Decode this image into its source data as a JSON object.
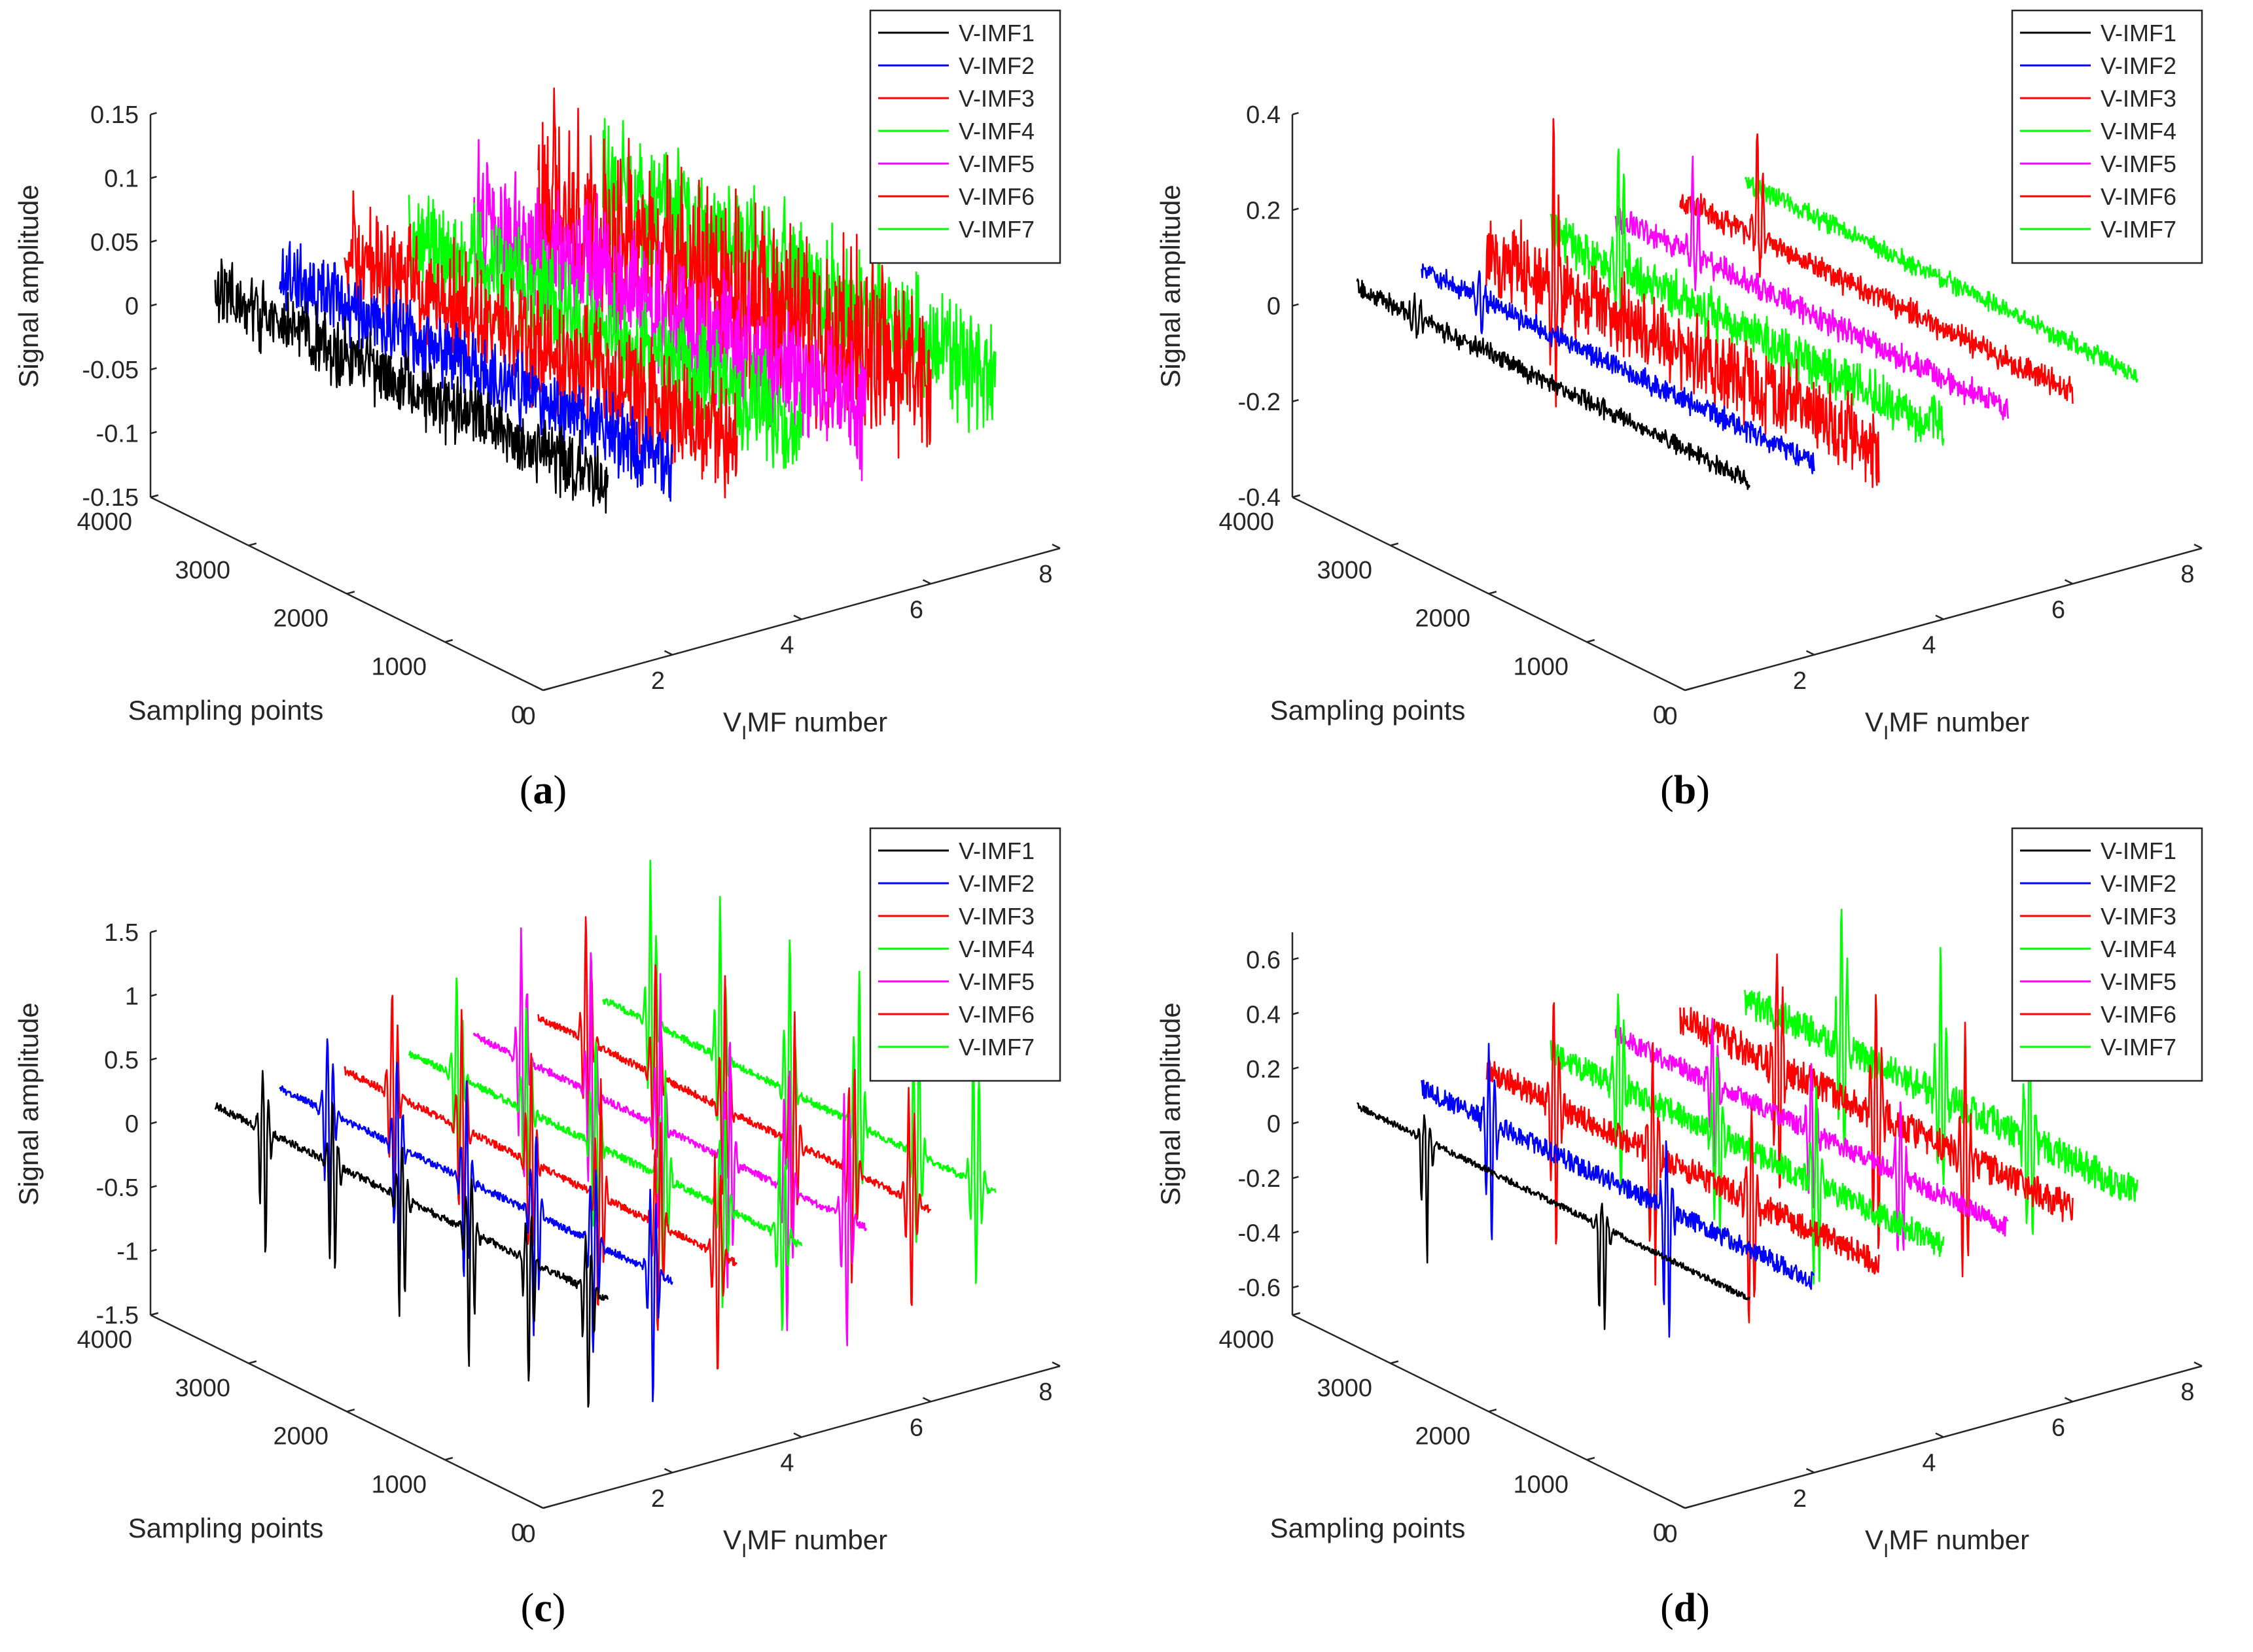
{
  "colors": {
    "V-IMF1": "#000000",
    "V-IMF2": "#0000ff",
    "V-IMF3": "#ff0000",
    "V-IMF4": "#00ff00",
    "V-IMF5": "#ff00ff",
    "V-IMF6": "#ff0000",
    "V-IMF7": "#00ff00",
    "axis": "#262626",
    "legend_border": "#262626"
  },
  "chart_data": [
    {
      "panel": "a",
      "caption": "(a)",
      "type": "line",
      "projection": "3d",
      "xlabel": "V_IMF number",
      "xlabel_parts": [
        "V",
        "I",
        "MF number"
      ],
      "ylabel": "Sampling points",
      "zlabel": "Signal amplitude",
      "xlim": [
        0,
        8
      ],
      "ylim": [
        0,
        4000
      ],
      "zlim": [
        -0.15,
        0.15
      ],
      "xticks": [
        "0",
        "2",
        "4",
        "6",
        "8"
      ],
      "yticks": [
        "0",
        "1000",
        "2000",
        "3000",
        "4000"
      ],
      "zticks": [
        "-0.15",
        "-0.1",
        "-0.05",
        "0",
        "0.05",
        "0.1",
        "0.15"
      ],
      "legend": [
        "V-IMF1",
        "V-IMF2",
        "V-IMF3",
        "V-IMF4",
        "V-IMF5",
        "V-IMF6",
        "V-IMF7"
      ],
      "legend_position": "top-right",
      "signal_style": "dense-noise",
      "series": [
        {
          "name": "V-IMF1",
          "x": 1,
          "sample_range": [
            0,
            4000
          ],
          "amplitude_range": [
            -0.035,
            0.03
          ],
          "peaks": []
        },
        {
          "name": "V-IMF2",
          "x": 2,
          "sample_range": [
            0,
            4000
          ],
          "amplitude_range": [
            -0.04,
            0.035
          ],
          "peaks": []
        },
        {
          "name": "V-IMF3",
          "x": 3,
          "sample_range": [
            0,
            4000
          ],
          "amplitude_range": [
            -0.05,
            0.06
          ],
          "peaks": []
        },
        {
          "name": "V-IMF4",
          "x": 4,
          "sample_range": [
            0,
            4000
          ],
          "amplitude_range": [
            -0.05,
            0.05
          ],
          "peaks": []
        },
        {
          "name": "V-IMF5",
          "x": 5,
          "sample_range": [
            0,
            4000
          ],
          "amplitude_range": [
            -0.07,
            0.07
          ],
          "peaks": []
        },
        {
          "name": "V-IMF6",
          "x": 6,
          "sample_range": [
            0,
            4000
          ],
          "amplitude_range": [
            -0.08,
            0.1
          ],
          "peaks": []
        },
        {
          "name": "V-IMF7",
          "x": 7,
          "sample_range": [
            0,
            4000
          ],
          "amplitude_range": [
            -0.06,
            0.06
          ],
          "peaks": []
        }
      ]
    },
    {
      "panel": "b",
      "caption": "(b)",
      "type": "line",
      "projection": "3d",
      "xlabel": "V_IMF number",
      "xlabel_parts": [
        "V",
        "I",
        "MF number"
      ],
      "ylabel": "Sampling points",
      "zlabel": "Signal amplitude",
      "xlim": [
        0,
        8
      ],
      "ylim": [
        0,
        4000
      ],
      "zlim": [
        -0.4,
        0.4
      ],
      "xticks": [
        "0",
        "2",
        "4",
        "6",
        "8"
      ],
      "yticks": [
        "0",
        "1000",
        "2000",
        "3000",
        "4000"
      ],
      "zticks": [
        "-0.4",
        "-0.2",
        "0",
        "0.2",
        "0.4"
      ],
      "legend": [
        "V-IMF1",
        "V-IMF2",
        "V-IMF3",
        "V-IMF4",
        "V-IMF5",
        "V-IMF6",
        "V-IMF7"
      ],
      "legend_position": "top-right",
      "signal_style": "noise-with-spikes",
      "series": [
        {
          "name": "V-IMF1",
          "x": 1,
          "sample_range": [
            0,
            4000
          ],
          "amplitude_range": [
            -0.06,
            0.06
          ],
          "peaks": [
            3400
          ]
        },
        {
          "name": "V-IMF2",
          "x": 2,
          "sample_range": [
            0,
            4000
          ],
          "amplitude_range": [
            -0.07,
            0.07
          ],
          "peaks": [
            3400
          ]
        },
        {
          "name": "V-IMF3",
          "x": 3,
          "sample_range": [
            0,
            4000
          ],
          "amplitude_range": [
            -0.25,
            0.35
          ],
          "peaks": [
            3300
          ]
        },
        {
          "name": "V-IMF4",
          "x": 4,
          "sample_range": [
            0,
            4000
          ],
          "amplitude_range": [
            -0.15,
            0.35
          ],
          "peaks": [
            3300
          ]
        },
        {
          "name": "V-IMF5",
          "x": 5,
          "sample_range": [
            0,
            4000
          ],
          "amplitude_range": [
            -0.08,
            0.22
          ],
          "peaks": [
            3200
          ]
        },
        {
          "name": "V-IMF6",
          "x": 6,
          "sample_range": [
            0,
            4000
          ],
          "amplitude_range": [
            -0.08,
            0.3
          ],
          "peaks": [
            3200
          ]
        },
        {
          "name": "V-IMF7",
          "x": 7,
          "sample_range": [
            0,
            4000
          ],
          "amplitude_range": [
            -0.06,
            0.08
          ],
          "peaks": []
        }
      ]
    },
    {
      "panel": "c",
      "caption": "(c)",
      "type": "line",
      "projection": "3d",
      "xlabel": "V_IMF number",
      "xlabel_parts": [
        "V",
        "I",
        "MF number"
      ],
      "ylabel": "Sampling points",
      "zlabel": "Signal amplitude",
      "xlim": [
        0,
        8
      ],
      "ylim": [
        0,
        4000
      ],
      "zlim": [
        -1.5,
        1.5
      ],
      "xticks": [
        "0",
        "2",
        "4",
        "6",
        "8"
      ],
      "yticks": [
        "0",
        "1000",
        "2000",
        "3000",
        "4000"
      ],
      "zticks": [
        "-1.5",
        "-1",
        "-0.5",
        "0",
        "0.5",
        "1",
        "1.5"
      ],
      "legend": [
        "V-IMF1",
        "V-IMF2",
        "V-IMF3",
        "V-IMF4",
        "V-IMF5",
        "V-IMF6",
        "V-IMF7"
      ],
      "legend_position": "top-right",
      "signal_style": "periodic-impulses",
      "series": [
        {
          "name": "V-IMF1",
          "x": 1,
          "sample_range": [
            0,
            4000
          ],
          "amplitude_range": [
            -1.2,
            0.5
          ],
          "peaks": [
            3500,
            2800,
            2100,
            1400,
            800,
            200
          ]
        },
        {
          "name": "V-IMF2",
          "x": 2,
          "sample_range": [
            0,
            4000
          ],
          "amplitude_range": [
            -1.1,
            0.8
          ],
          "peaks": [
            3500,
            2800,
            2100,
            1400,
            800,
            200
          ]
        },
        {
          "name": "V-IMF3",
          "x": 3,
          "sample_range": [
            0,
            4000
          ],
          "amplitude_range": [
            -1.0,
            1.0
          ],
          "peaks": [
            3500,
            2800,
            2100,
            1400,
            800,
            200
          ]
        },
        {
          "name": "V-IMF4",
          "x": 4,
          "sample_range": [
            0,
            4000
          ],
          "amplitude_range": [
            -0.9,
            1.0
          ],
          "peaks": [
            3500,
            2800,
            2100,
            1400,
            800,
            200
          ]
        },
        {
          "name": "V-IMF5",
          "x": 5,
          "sample_range": [
            0,
            4000
          ],
          "amplitude_range": [
            -1.2,
            1.2
          ],
          "peaks": [
            3500,
            2800,
            2100,
            1400,
            800,
            200
          ]
        },
        {
          "name": "V-IMF6",
          "x": 6,
          "sample_range": [
            0,
            4000
          ],
          "amplitude_range": [
            -0.9,
            1.1
          ],
          "peaks": [
            3500,
            2800,
            2100,
            1400,
            800,
            200
          ]
        },
        {
          "name": "V-IMF7",
          "x": 7,
          "sample_range": [
            0,
            4000
          ],
          "amplitude_range": [
            -0.9,
            1.4
          ],
          "peaks": [
            3500,
            2800,
            2100,
            1400,
            800,
            200
          ]
        }
      ]
    },
    {
      "panel": "d",
      "caption": "(d)",
      "type": "line",
      "projection": "3d",
      "xlabel": "V_IMF number",
      "xlabel_parts": [
        "V",
        "I",
        "MF number"
      ],
      "ylabel": "Sampling points",
      "zlabel": "Signal amplitude",
      "xlim": [
        0,
        8
      ],
      "ylim": [
        0,
        4000
      ],
      "zlim": [
        -0.7,
        0.7
      ],
      "xticks": [
        "0",
        "2",
        "4",
        "6",
        "8"
      ],
      "yticks": [
        "0",
        "1000",
        "2000",
        "3000",
        "4000"
      ],
      "zticks": [
        "-0.6",
        "-0.4",
        "-0.2",
        "0",
        "0.2",
        "0.4",
        "0.6"
      ],
      "legend": [
        "V-IMF1",
        "V-IMF2",
        "V-IMF3",
        "V-IMF4",
        "V-IMF5",
        "V-IMF6",
        "V-IMF7"
      ],
      "legend_position": "top-right",
      "signal_style": "impulses-in-noise",
      "series": [
        {
          "name": "V-IMF1",
          "x": 1,
          "sample_range": [
            0,
            4000
          ],
          "amplitude_range": [
            -0.5,
            0.1
          ],
          "peaks": [
            3300,
            1500
          ]
        },
        {
          "name": "V-IMF2",
          "x": 2,
          "sample_range": [
            0,
            4000
          ],
          "amplitude_range": [
            -0.6,
            0.3
          ],
          "peaks": [
            3300,
            1500
          ]
        },
        {
          "name": "V-IMF3",
          "x": 3,
          "sample_range": [
            0,
            4000
          ],
          "amplitude_range": [
            -0.6,
            0.4
          ],
          "peaks": [
            3300,
            2300,
            1300
          ]
        },
        {
          "name": "V-IMF4",
          "x": 4,
          "sample_range": [
            0,
            4000
          ],
          "amplitude_range": [
            -0.5,
            0.4
          ],
          "peaks": [
            3300,
            2300,
            1300
          ]
        },
        {
          "name": "V-IMF5",
          "x": 5,
          "sample_range": [
            0,
            4000
          ],
          "amplitude_range": [
            -0.4,
            0.3
          ],
          "peaks": [
            3000,
            2000,
            1100
          ]
        },
        {
          "name": "V-IMF6",
          "x": 6,
          "sample_range": [
            0,
            4000
          ],
          "amplitude_range": [
            -0.6,
            0.5
          ],
          "peaks": [
            3000,
            2000,
            1100
          ]
        },
        {
          "name": "V-IMF7",
          "x": 7,
          "sample_range": [
            0,
            4000
          ],
          "amplitude_range": [
            -0.5,
            0.6
          ],
          "peaks": [
            3000,
            2000,
            1100
          ]
        }
      ]
    }
  ]
}
